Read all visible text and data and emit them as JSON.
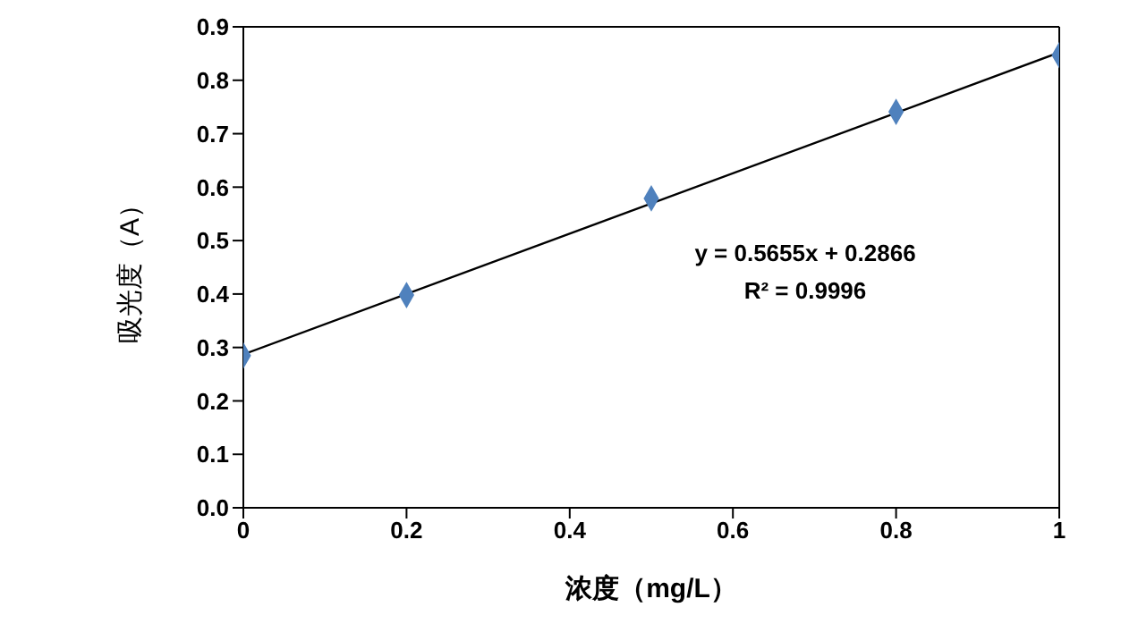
{
  "chart_data": {
    "type": "scatter",
    "xlabel": "浓度（mg/L）",
    "ylabel": "吸光度（A）",
    "annotations": [
      "y = 0.5655x + 0.2866",
      "R² = 0.9996"
    ],
    "series": [
      {
        "color": "#4f81bd",
        "x": [
          0,
          0.2,
          0.5,
          0.8,
          1
        ],
        "values": [
          0.285,
          0.398,
          0.579,
          0.741,
          0.847
        ],
        "marker": "diamond"
      },
      {
        "type": "line",
        "color": "#000000",
        "x": [
          0,
          1
        ],
        "values": [
          0.287,
          0.852
        ],
        "marker": "none",
        "line_style": "solid"
      }
    ],
    "xlim": [
      0,
      1
    ],
    "xticks": [
      0,
      0.2,
      0.4,
      0.6,
      0.8,
      1
    ],
    "ylim": [
      0,
      0.9
    ],
    "yticks": [
      {
        "value": 0,
        "label": "0.0"
      },
      0.1,
      0.2,
      0.3,
      0.4,
      0.5,
      0.6,
      0.7,
      0.8,
      0.9
    ],
    "grid": false,
    "legend": false
  }
}
